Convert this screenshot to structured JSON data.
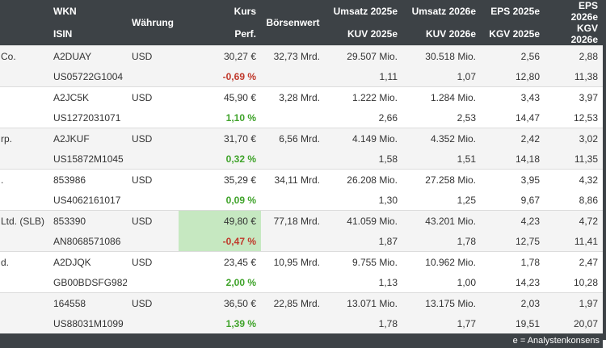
{
  "header": {
    "wkn": "WKN",
    "isin": "ISIN",
    "currency": "Währung",
    "price": "Kurs",
    "perf": "Perf.",
    "mcap": "Börsenwert",
    "rev25": "Umsatz 2025e",
    "ps25": "KUV 2025e",
    "rev26": "Umsatz 2026e",
    "ps26": "KUV 2026e",
    "eps25": "EPS 2025e",
    "pe25": "KGV 2025e",
    "eps26": "EPS 2026e",
    "pe26": "KGV 2026e"
  },
  "rows": [
    {
      "name": "Co.",
      "wkn": "A2DUAY",
      "isin": "US05722G1004",
      "currency": "USD",
      "price": "30,27 €",
      "perf": "-0,69 %",
      "perf_dir": "neg",
      "mcap": "32,73 Mrd.",
      "rev25": "29.507 Mio.",
      "ps25": "1,11",
      "rev26": "30.518 Mio.",
      "ps26": "1,07",
      "eps25": "2,56",
      "pe25": "12,80",
      "eps26": "2,88",
      "pe26": "11,38"
    },
    {
      "name": "",
      "wkn": "A2JC5K",
      "isin": "US1272031071",
      "currency": "USD",
      "price": "45,90 €",
      "perf": "1,10 %",
      "perf_dir": "pos",
      "mcap": "3,28 Mrd.",
      "rev25": "1.222 Mio.",
      "ps25": "2,66",
      "rev26": "1.284 Mio.",
      "ps26": "2,53",
      "eps25": "3,43",
      "pe25": "14,47",
      "eps26": "3,97",
      "pe26": "12,53"
    },
    {
      "name": "rp.",
      "wkn": "A2JKUF",
      "isin": "US15872M1045",
      "currency": "USD",
      "price": "31,70 €",
      "perf": "0,32 %",
      "perf_dir": "pos",
      "mcap": "6,56 Mrd.",
      "rev25": "4.149 Mio.",
      "ps25": "1,58",
      "rev26": "4.352 Mio.",
      "ps26": "1,51",
      "eps25": "2,42",
      "pe25": "14,18",
      "eps26": "3,02",
      "pe26": "11,35"
    },
    {
      "name": ".",
      "wkn": "853986",
      "isin": "US4062161017",
      "currency": "USD",
      "price": "35,29 €",
      "perf": "0,09 %",
      "perf_dir": "pos",
      "mcap": "34,11 Mrd.",
      "rev25": "26.208 Mio.",
      "ps25": "1,30",
      "rev26": "27.258 Mio.",
      "ps26": "1,25",
      "eps25": "3,95",
      "pe25": "9,67",
      "eps26": "4,32",
      "pe26": "8,86"
    },
    {
      "name": "Ltd. (SLB)",
      "wkn": "853390",
      "isin": "AN8068571086",
      "currency": "USD",
      "price": "49,80 €",
      "perf": "-0,47 %",
      "perf_dir": "neg",
      "highlight": true,
      "mcap": "77,18 Mrd.",
      "rev25": "41.059 Mio.",
      "ps25": "1,87",
      "rev26": "43.201 Mio.",
      "ps26": "1,78",
      "eps25": "4,23",
      "pe25": "12,75",
      "eps26": "4,72",
      "pe26": "11,41"
    },
    {
      "name": "d.",
      "wkn": "A2DJQK",
      "isin": "GB00BDSFG982",
      "currency": "USD",
      "price": "23,45 €",
      "perf": "2,00 %",
      "perf_dir": "pos",
      "mcap": "10,95 Mrd.",
      "rev25": "9.755 Mio.",
      "ps25": "1,13",
      "rev26": "10.962 Mio.",
      "ps26": "1,00",
      "eps25": "1,78",
      "pe25": "14,23",
      "eps26": "2,47",
      "pe26": "10,28"
    },
    {
      "name": "",
      "wkn": "164558",
      "isin": "US88031M1099",
      "currency": "USD",
      "price": "36,50 €",
      "perf": "1,39 %",
      "perf_dir": "pos",
      "mcap": "22,85 Mrd.",
      "rev25": "13.071 Mio.",
      "ps25": "1,78",
      "rev26": "13.175 Mio.",
      "ps26": "1,77",
      "eps25": "2,03",
      "pe25": "19,51",
      "eps26": "1,97",
      "pe26": "20,07"
    }
  ],
  "footer": "e = Analystenkonsens",
  "colors": {
    "header_bg": "#3d4246",
    "negative": "#c0392b",
    "positive": "#3fa32a",
    "highlight": "#c6e8c1"
  }
}
